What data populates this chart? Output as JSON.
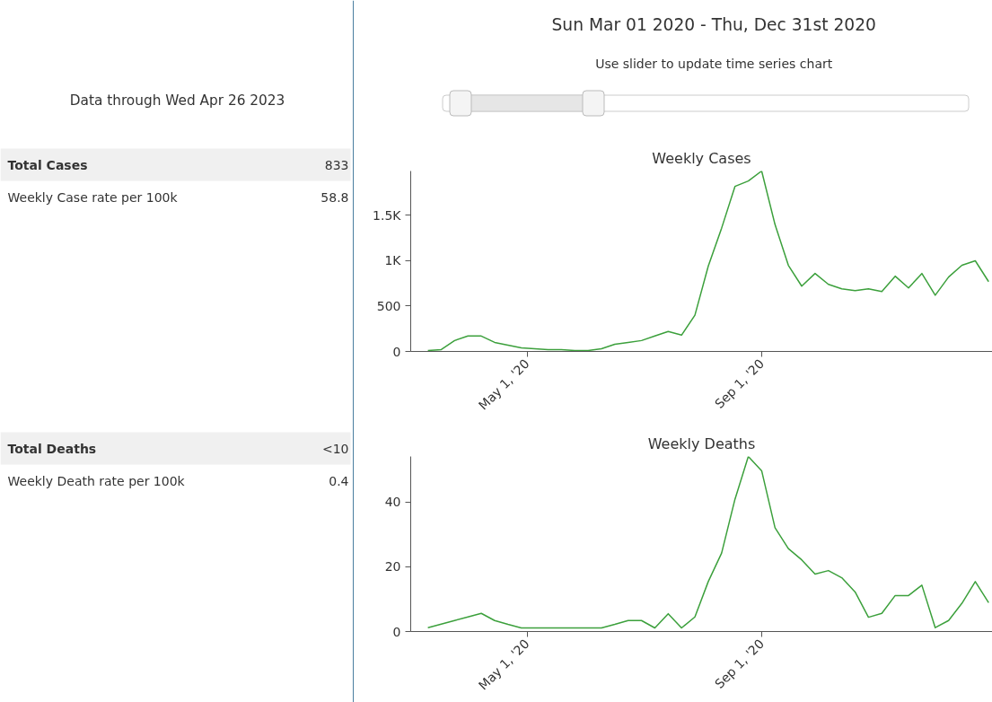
{
  "chart_data": [
    {
      "type": "other",
      "annotations": [
        "Data through Wed Apr 26 2023",
        "Total Cases",
        "833",
        "Weekly Case rate per 100k",
        "58.8",
        "Total Deaths",
        "<10",
        "Weekly Death rate per 100k",
        "0.4"
      ]
    },
    {
      "type": "other",
      "title": "Sun Mar 01 2020 - Thu, Dec 31st 2020",
      "subtitle": "Use slider to update time series chart"
    },
    {
      "type": "line",
      "title": "Weekly Cases",
      "x": [
        "2020-03-10",
        "2020-03-17",
        "2020-03-24",
        "2020-03-31",
        "2020-04-07",
        "2020-04-14",
        "2020-04-21",
        "2020-04-28",
        "2020-05-05",
        "2020-05-12",
        "2020-05-19",
        "2020-05-26",
        "2020-06-02",
        "2020-06-09",
        "2020-06-16",
        "2020-06-23",
        "2020-06-30",
        "2020-07-07",
        "2020-07-14",
        "2020-07-21",
        "2020-07-28",
        "2020-08-04",
        "2020-08-11",
        "2020-08-18",
        "2020-08-25",
        "2020-09-01",
        "2020-09-08",
        "2020-09-15",
        "2020-09-22",
        "2020-09-29",
        "2020-10-06",
        "2020-10-13",
        "2020-10-20",
        "2020-10-27",
        "2020-11-03",
        "2020-11-10",
        "2020-11-17",
        "2020-11-24",
        "2020-12-01",
        "2020-12-08",
        "2020-12-15",
        "2020-12-22",
        "2020-12-29"
      ],
      "series": [
        {
          "color": "#3ca03c",
          "values": [
            10,
            20,
            120,
            170,
            170,
            100,
            70,
            40,
            30,
            20,
            20,
            10,
            10,
            30,
            80,
            100,
            120,
            170,
            220,
            180,
            400,
            940,
            1360,
            1820,
            1880,
            1990,
            1400,
            950,
            720,
            860,
            740,
            690,
            670,
            690,
            660,
            830,
            700,
            860,
            620,
            820,
            950,
            1000,
            770
          ]
        }
      ],
      "xlim": [
        "2020-03-01",
        "2020-12-31"
      ],
      "xticks": [
        {
          "value": "2020-05-01",
          "label": "May 1, '20"
        },
        {
          "value": "2020-09-01",
          "label": "Sep 1, '20"
        }
      ],
      "ylim": [
        0,
        1990
      ],
      "yticks": [
        0,
        500,
        {
          "value": 1000,
          "label": "1K"
        },
        {
          "value": 1500,
          "label": "1.5K"
        }
      ]
    },
    {
      "type": "line",
      "title": "Weekly Deaths",
      "x": [
        "2020-03-10",
        "2020-03-17",
        "2020-03-24",
        "2020-03-31",
        "2020-04-07",
        "2020-04-14",
        "2020-04-21",
        "2020-04-28",
        "2020-05-05",
        "2020-05-12",
        "2020-05-19",
        "2020-05-26",
        "2020-06-02",
        "2020-06-09",
        "2020-06-16",
        "2020-06-23",
        "2020-06-30",
        "2020-07-07",
        "2020-07-14",
        "2020-07-21",
        "2020-07-28",
        "2020-08-04",
        "2020-08-11",
        "2020-08-18",
        "2020-08-25",
        "2020-09-01",
        "2020-09-08",
        "2020-09-15",
        "2020-09-22",
        "2020-09-29",
        "2020-10-06",
        "2020-10-13",
        "2020-10-20",
        "2020-10-27",
        "2020-11-03",
        "2020-11-10",
        "2020-11-17",
        "2020-11-24",
        "2020-12-01",
        "2020-12-08",
        "2020-12-15",
        "2020-12-22",
        "2020-12-29"
      ],
      "series": [
        {
          "color": "#3ca03c",
          "values": [
            1.2,
            2.3,
            3.4,
            4.5,
            5.6,
            3.4,
            2.2,
            1.1,
            1.1,
            1.1,
            1.1,
            1.1,
            1.1,
            1.1,
            2.2,
            3.4,
            3.4,
            1.1,
            5.5,
            1.1,
            4.5,
            15.4,
            24.2,
            40.8,
            54,
            49.6,
            32,
            25.6,
            22.1,
            17.7,
            18.8,
            16.6,
            12.2,
            4.4,
            5.6,
            11.1,
            11.1,
            14.3,
            1.2,
            3.4,
            8.7,
            15.4,
            8.9
          ]
        }
      ],
      "xlim": [
        "2020-03-01",
        "2020-12-31"
      ],
      "xticks": [
        {
          "value": "2020-05-01",
          "label": "May 1, '20"
        },
        {
          "value": "2020-09-01",
          "label": "Sep 1, '20"
        }
      ],
      "ylim": [
        0,
        54
      ],
      "yticks": [
        0,
        20,
        40
      ]
    }
  ]
}
